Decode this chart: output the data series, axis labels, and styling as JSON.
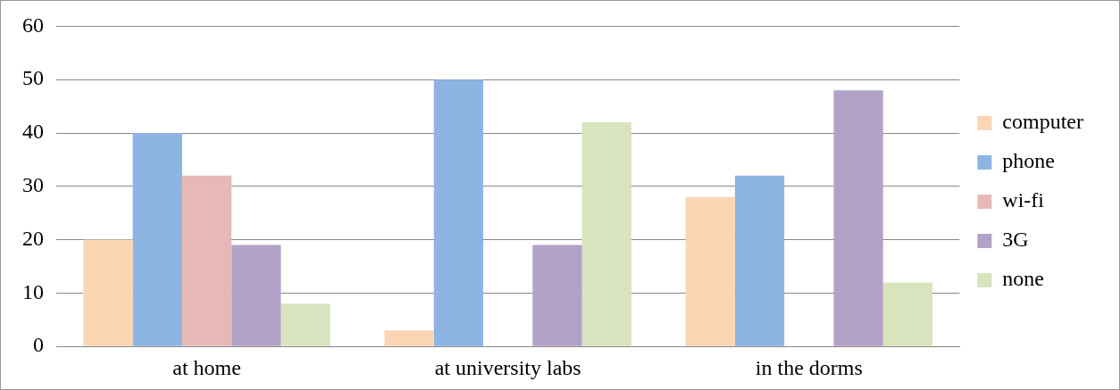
{
  "chart_data": {
    "type": "bar",
    "categories": [
      "at home",
      "at university labs",
      "in the dorms"
    ],
    "series": [
      {
        "name": "computer",
        "color": "#fcd5b5",
        "values": [
          20,
          3,
          28
        ]
      },
      {
        "name": "phone",
        "color": "#8eb4e3",
        "values": [
          40,
          50,
          32
        ]
      },
      {
        "name": "wi-fi",
        "color": "#e6b9b8",
        "values": [
          32,
          0,
          0
        ]
      },
      {
        "name": "3G",
        "color": "#b3a2c7",
        "values": [
          19,
          19,
          48
        ]
      },
      {
        "name": "none",
        "color": "#d7e4bd",
        "values": [
          8,
          42,
          12
        ]
      }
    ],
    "ylim": [
      0,
      60
    ],
    "yticks": [
      0,
      10,
      20,
      30,
      40,
      50,
      60
    ],
    "grid": "y",
    "legend": "right"
  }
}
